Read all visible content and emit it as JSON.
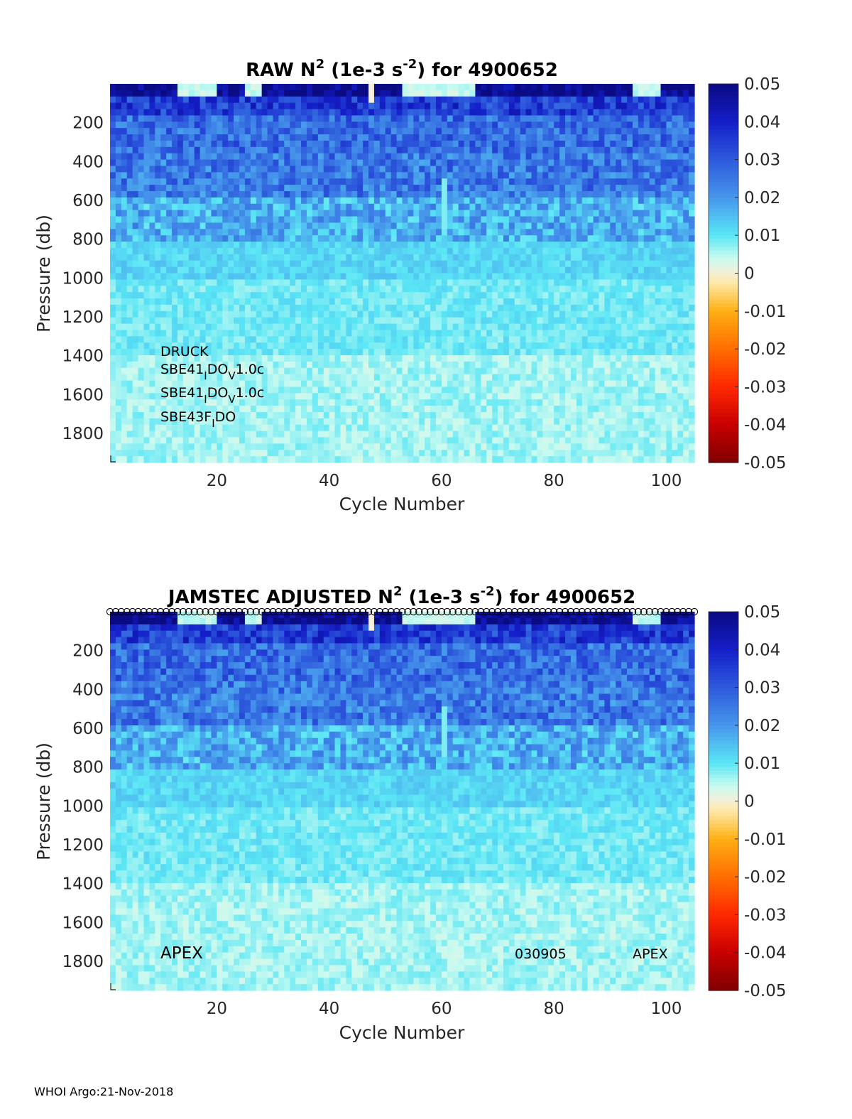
{
  "chart_data": [
    {
      "type": "heatmap",
      "title_main": "RAW N",
      "title_sup": "2",
      "title_mid": " (1e-3 s",
      "title_sup2": "-2",
      "title_end": ") for 4900652",
      "xlabel": "Cycle Number",
      "ylabel": "Pressure (db)",
      "xlim": [
        1,
        105
      ],
      "ylim": [
        1950,
        0
      ],
      "xticks": [
        "20",
        "40",
        "60",
        "80",
        "100"
      ],
      "yticks": [
        "200",
        "400",
        "600",
        "800",
        "1000",
        "1200",
        "1400",
        "1600",
        "1800"
      ],
      "colorbar": {
        "range": [
          -0.05,
          0.05
        ],
        "ticks": [
          "0.05",
          "0.04",
          "0.03",
          "0.02",
          "0.01",
          "0",
          "-0.01",
          "-0.02",
          "-0.03",
          "-0.04",
          "-0.05"
        ]
      },
      "annotations": [
        {
          "base": "DRUCK",
          "sub": "",
          "rest": ""
        },
        {
          "base": "SBE41",
          "sub": "I",
          "mid": "DO",
          "sub2": "V",
          "rest": "1.0c"
        },
        {
          "base": "SBE41",
          "sub": "I",
          "mid": "DO",
          "sub2": "V",
          "rest": "1.0c"
        },
        {
          "base": "SBE43F",
          "sub": "I",
          "mid": "DO",
          "sub2": "",
          "rest": ""
        }
      ],
      "profile_summary": [
        {
          "pressure_range": [
            0,
            100
          ],
          "n2": 0.05
        },
        {
          "pressure_range": [
            100,
            300
          ],
          "n2": 0.03
        },
        {
          "pressure_range": [
            300,
            600
          ],
          "n2": 0.025
        },
        {
          "pressure_range": [
            600,
            900
          ],
          "n2": 0.015
        },
        {
          "pressure_range": [
            900,
            1400
          ],
          "n2": 0.01
        },
        {
          "pressure_range": [
            1400,
            1950
          ],
          "n2": 0.005
        }
      ]
    },
    {
      "type": "heatmap",
      "title_main": "JAMSTEC  ADJUSTED N",
      "title_sup": "2",
      "title_mid": " (1e-3 s",
      "title_sup2": "-2",
      "title_end": ") for 4900652",
      "xlabel": "Cycle Number",
      "ylabel": "Pressure (db)",
      "xlim": [
        1,
        105
      ],
      "ylim": [
        1950,
        0
      ],
      "xticks": [
        "20",
        "40",
        "60",
        "80",
        "100"
      ],
      "yticks": [
        "200",
        "400",
        "600",
        "800",
        "1000",
        "1200",
        "1400",
        "1600",
        "1800"
      ],
      "colorbar": {
        "range": [
          -0.05,
          0.05
        ],
        "ticks": [
          "0.05",
          "0.04",
          "0.03",
          "0.02",
          "0.01",
          "0",
          "-0.01",
          "-0.02",
          "-0.03",
          "-0.04",
          "-0.05"
        ]
      },
      "annotations_bottom": {
        "left": "APEX",
        "mid": "030905",
        "right": "APEX"
      },
      "qc_markers": "open circles at top of each cycle"
    }
  ],
  "footer": "WHOI Argo:21-Nov-2018"
}
